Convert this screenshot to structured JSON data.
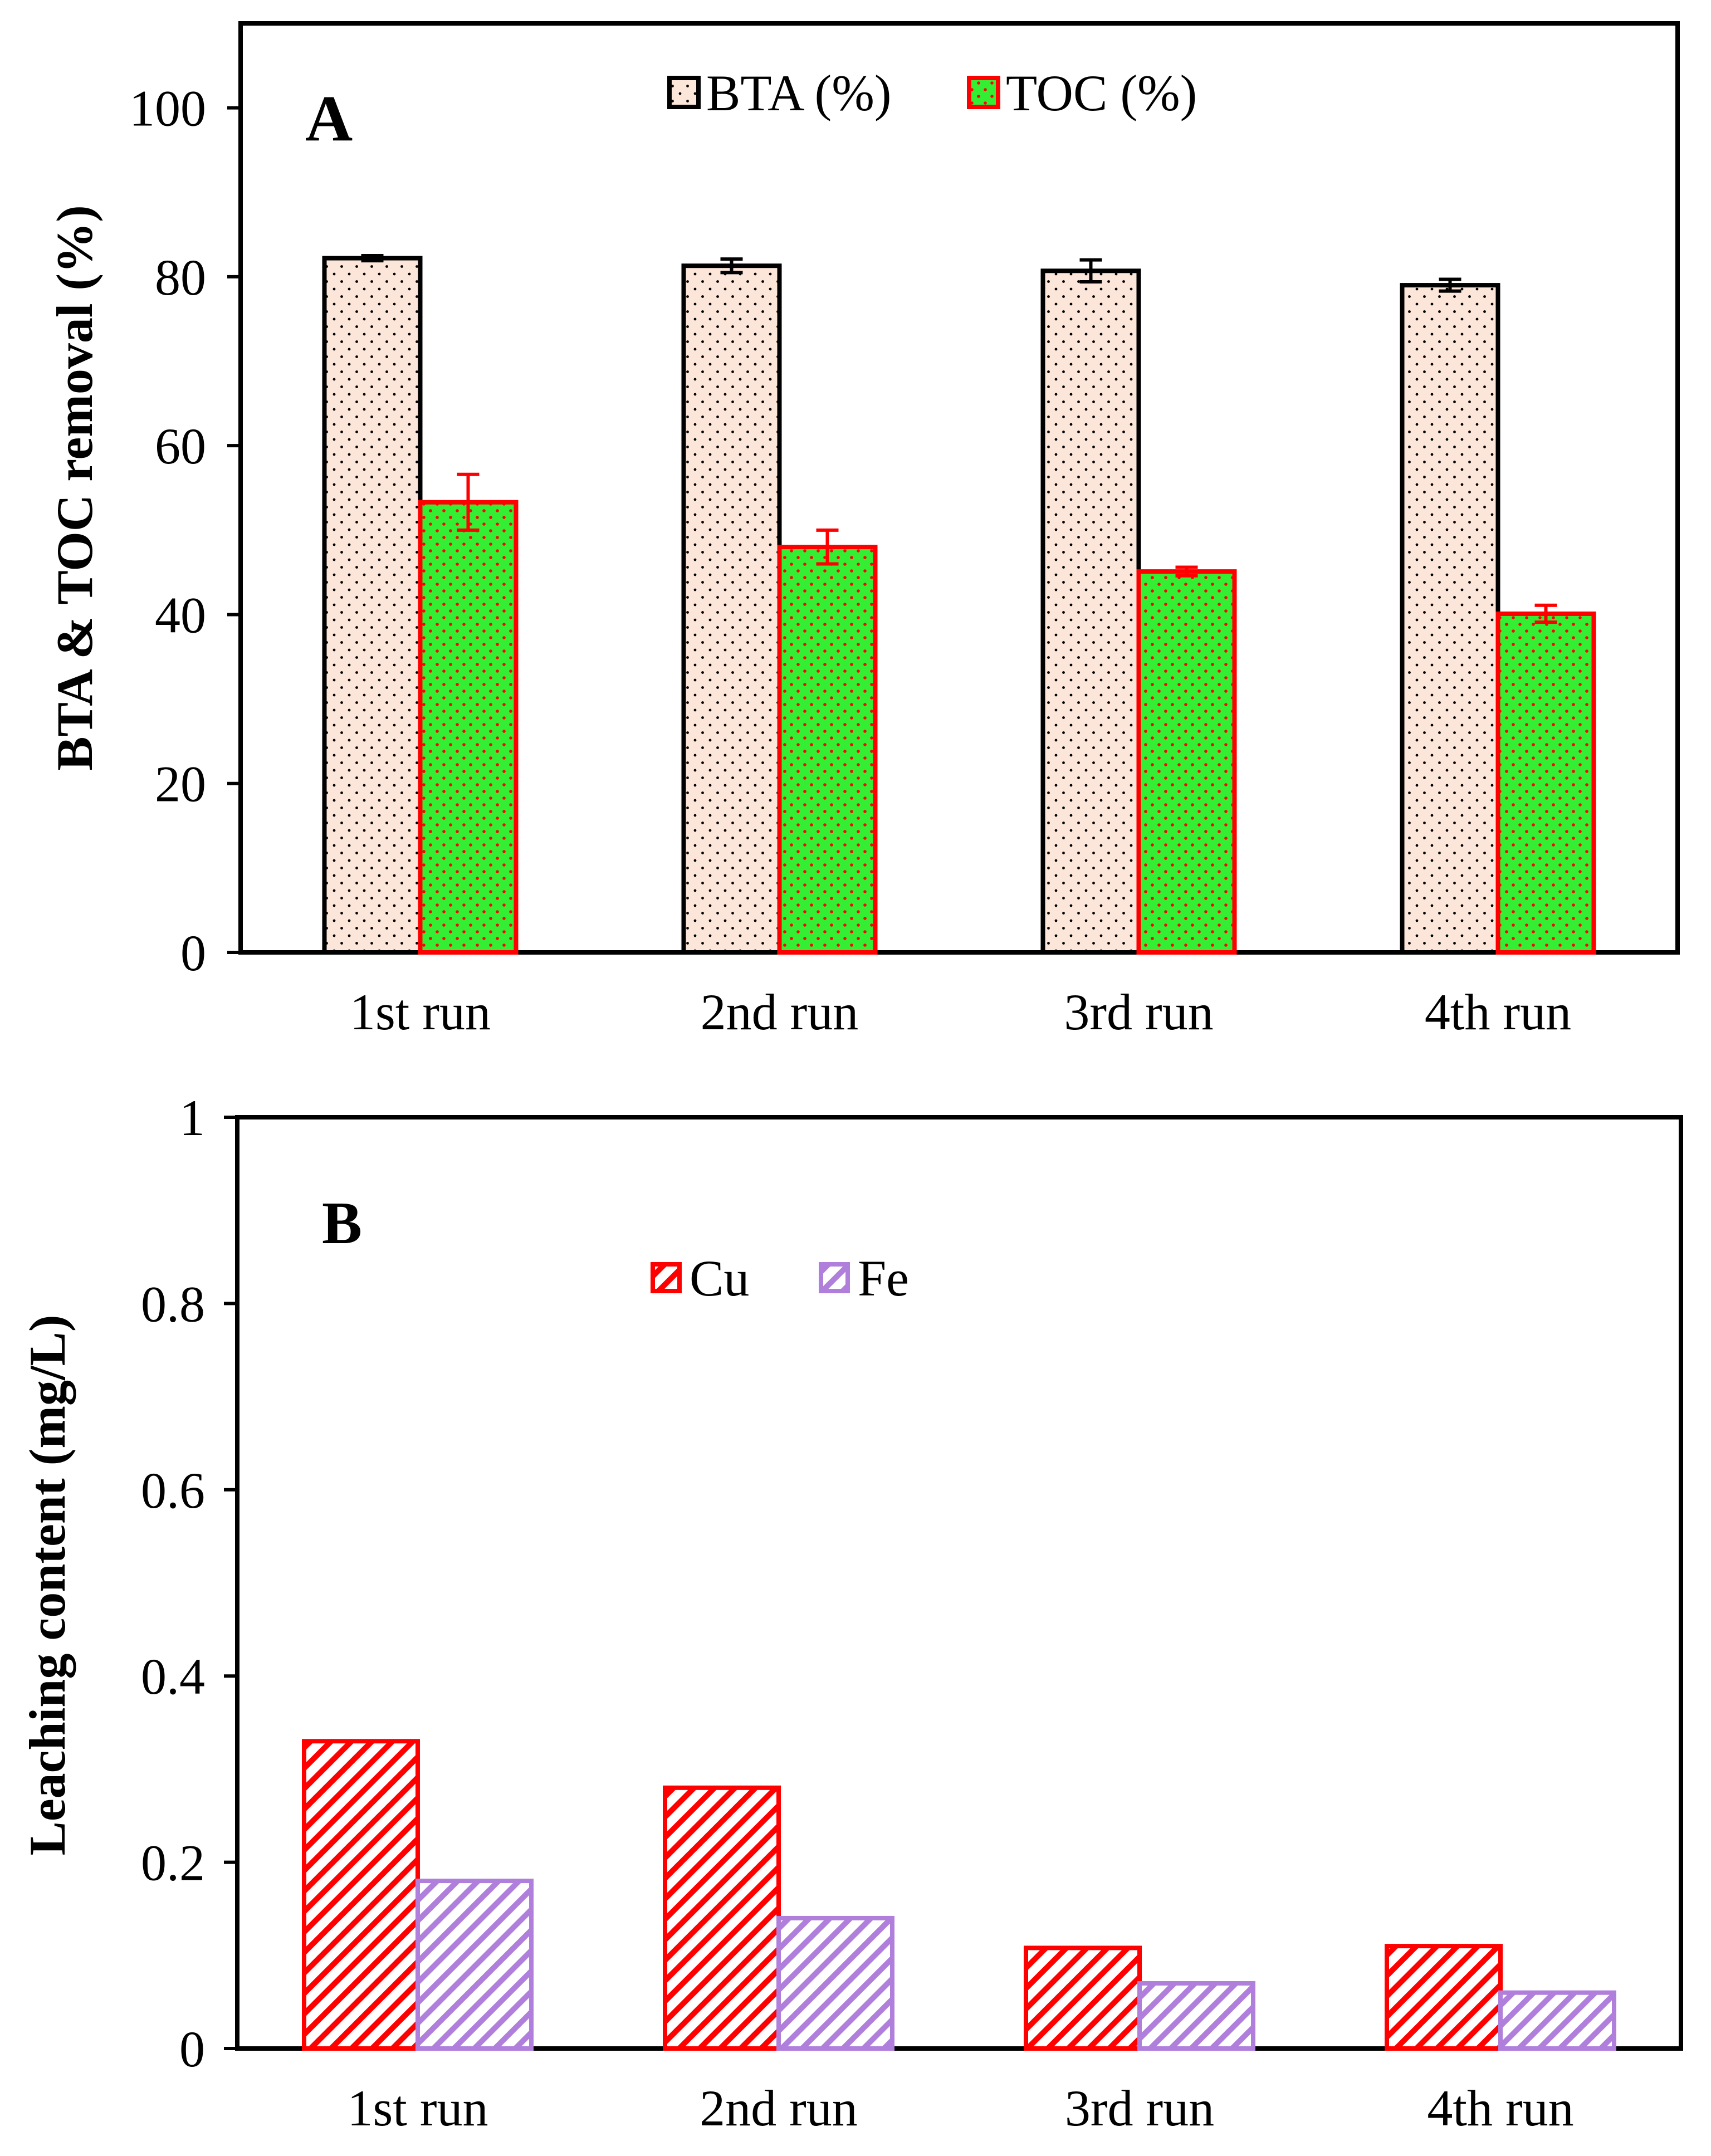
{
  "colors": {
    "bta_fill": "#fce6d9",
    "bta_stroke": "#000000",
    "toc_fill": "#33ee33",
    "toc_stroke": "#ff0000",
    "cu_stroke": "#ff0000",
    "fe_stroke": "#b07fdc"
  },
  "chart_data": [
    {
      "panel": "A",
      "type": "bar",
      "ylabel": "BTA & TOC removal (%)",
      "ylim": [
        0,
        110
      ],
      "yticks": [
        0,
        20,
        40,
        60,
        80,
        100
      ],
      "categories": [
        "1st run",
        "2nd run",
        "3rd run",
        "4th run"
      ],
      "series": [
        {
          "name": "BTA (%)",
          "values": [
            82.2,
            81.3,
            80.7,
            79.0
          ],
          "errors": [
            0.3,
            0.8,
            1.3,
            0.7
          ]
        },
        {
          "name": "TOC (%)",
          "values": [
            53.3,
            48.0,
            45.1,
            40.1
          ],
          "errors": [
            3.3,
            2.0,
            0.5,
            1.0
          ]
        }
      ],
      "legend_position": "top-center",
      "grid": false
    },
    {
      "panel": "B",
      "type": "bar",
      "ylabel": "Leaching content (mg/L)",
      "ylim": [
        0,
        1
      ],
      "yticks": [
        "0",
        "0.2",
        "0.4",
        "0.6",
        "0.8",
        "1"
      ],
      "categories": [
        "1st run",
        "2nd run",
        "3rd run",
        "4th run"
      ],
      "series": [
        {
          "name": "Cu",
          "values": [
            0.33,
            0.28,
            0.108,
            0.11
          ]
        },
        {
          "name": "Fe",
          "values": [
            0.18,
            0.14,
            0.07,
            0.06
          ]
        }
      ],
      "legend_position": "upper-center",
      "grid": false
    }
  ]
}
